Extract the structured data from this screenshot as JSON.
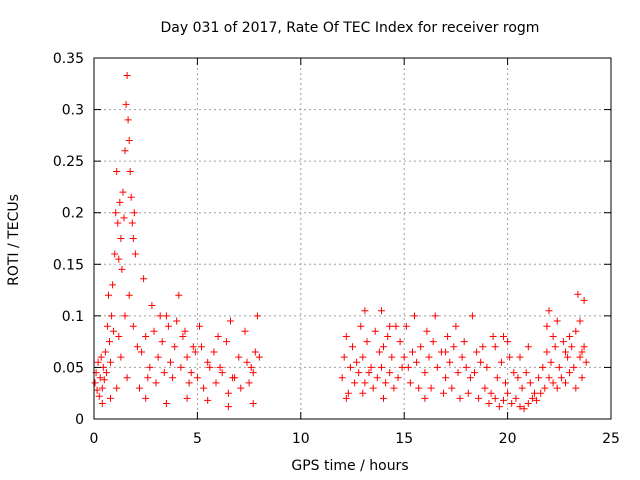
{
  "chart_data": {
    "type": "scatter",
    "title": "Day 031 of 2017, Rate Of TEC Index for receiver rogm",
    "xlabel": "GPS time / hours",
    "ylabel": "ROTI / TECUs",
    "xlim": [
      0,
      25
    ],
    "ylim": [
      0,
      0.35
    ],
    "x_ticks": [
      0,
      5,
      10,
      15,
      20,
      25
    ],
    "x_tick_labels": [
      "0",
      "5",
      "10",
      "15",
      "20",
      "25"
    ],
    "y_ticks": [
      0,
      0.05,
      0.1,
      0.15,
      0.2,
      0.25,
      0.3,
      0.35
    ],
    "y_tick_labels": [
      "0",
      "0.05",
      "0.1",
      "0.15",
      "0.2",
      "0.25",
      "0.3",
      "0.35"
    ],
    "grid": true,
    "marker": "+",
    "colors": {
      "series": "#ff0000",
      "grid": "#a0a0a0",
      "axis": "#000000"
    },
    "series": [
      {
        "name": "ROTI",
        "points": [
          [
            0.05,
            0.035
          ],
          [
            0.1,
            0.045
          ],
          [
            0.15,
            0.028
          ],
          [
            0.2,
            0.055
          ],
          [
            0.25,
            0.022
          ],
          [
            0.3,
            0.04
          ],
          [
            0.35,
            0.06
          ],
          [
            0.4,
            0.03
          ],
          [
            0.45,
            0.05
          ],
          [
            0.5,
            0.038
          ],
          [
            0.55,
            0.065
          ],
          [
            0.6,
            0.045
          ],
          [
            0.65,
            0.09
          ],
          [
            0.7,
            0.12
          ],
          [
            0.75,
            0.075
          ],
          [
            0.8,
            0.055
          ],
          [
            0.85,
            0.1
          ],
          [
            0.9,
            0.13
          ],
          [
            0.95,
            0.085
          ],
          [
            1.0,
            0.16
          ],
          [
            1.05,
            0.2
          ],
          [
            1.1,
            0.24
          ],
          [
            1.15,
            0.19
          ],
          [
            1.2,
            0.155
          ],
          [
            1.25,
            0.21
          ],
          [
            1.3,
            0.175
          ],
          [
            1.35,
            0.145
          ],
          [
            1.4,
            0.22
          ],
          [
            1.45,
            0.195
          ],
          [
            1.5,
            0.26
          ],
          [
            1.55,
            0.305
          ],
          [
            1.6,
            0.333
          ],
          [
            1.65,
            0.29
          ],
          [
            1.7,
            0.27
          ],
          [
            1.75,
            0.24
          ],
          [
            1.8,
            0.215
          ],
          [
            1.85,
            0.19
          ],
          [
            1.9,
            0.175
          ],
          [
            1.95,
            0.2
          ],
          [
            2.0,
            0.16
          ],
          [
            1.2,
            0.08
          ],
          [
            1.3,
            0.06
          ],
          [
            1.5,
            0.1
          ],
          [
            1.7,
            0.12
          ],
          [
            1.9,
            0.09
          ],
          [
            2.1,
            0.07
          ],
          [
            2.3,
            0.065
          ],
          [
            2.5,
            0.08
          ],
          [
            2.7,
            0.05
          ],
          [
            2.9,
            0.085
          ],
          [
            3.1,
            0.06
          ],
          [
            3.3,
            0.075
          ],
          [
            3.5,
            0.1
          ],
          [
            3.7,
            0.055
          ],
          [
            3.9,
            0.07
          ],
          [
            4.1,
            0.12
          ],
          [
            4.3,
            0.08
          ],
          [
            4.5,
            0.06
          ],
          [
            4.7,
            0.045
          ],
          [
            4.9,
            0.065
          ],
          [
            2.2,
            0.03
          ],
          [
            2.6,
            0.04
          ],
          [
            3.0,
            0.035
          ],
          [
            3.4,
            0.045
          ],
          [
            3.8,
            0.04
          ],
          [
            4.2,
            0.05
          ],
          [
            4.6,
            0.035
          ],
          [
            5.0,
            0.04
          ],
          [
            5.3,
            0.03
          ],
          [
            5.6,
            0.05
          ],
          [
            5.9,
            0.035
          ],
          [
            6.2,
            0.045
          ],
          [
            6.5,
            0.025
          ],
          [
            6.8,
            0.04
          ],
          [
            7.1,
            0.03
          ],
          [
            7.4,
            0.055
          ],
          [
            7.7,
            0.045
          ],
          [
            8.0,
            0.06
          ],
          [
            7.9,
            0.1
          ],
          [
            7.5,
            0.035
          ],
          [
            5.2,
            0.07
          ],
          [
            5.5,
            0.055
          ],
          [
            5.8,
            0.065
          ],
          [
            6.1,
            0.05
          ],
          [
            6.4,
            0.075
          ],
          [
            6.7,
            0.04
          ],
          [
            7.0,
            0.06
          ],
          [
            7.3,
            0.085
          ],
          [
            7.6,
            0.05
          ],
          [
            7.8,
            0.065
          ],
          [
            2.4,
            0.136
          ],
          [
            2.8,
            0.11
          ],
          [
            3.2,
            0.1
          ],
          [
            3.6,
            0.09
          ],
          [
            4.0,
            0.095
          ],
          [
            4.4,
            0.085
          ],
          [
            4.8,
            0.07
          ],
          [
            5.1,
            0.09
          ],
          [
            6.0,
            0.08
          ],
          [
            6.6,
            0.095
          ],
          [
            0.4,
            0.015
          ],
          [
            0.8,
            0.02
          ],
          [
            1.1,
            0.03
          ],
          [
            1.6,
            0.04
          ],
          [
            2.5,
            0.02
          ],
          [
            3.5,
            0.015
          ],
          [
            4.5,
            0.02
          ],
          [
            5.5,
            0.018
          ],
          [
            6.5,
            0.012
          ],
          [
            7.7,
            0.015
          ],
          [
            12.0,
            0.04
          ],
          [
            12.1,
            0.06
          ],
          [
            12.2,
            0.08
          ],
          [
            12.3,
            0.025
          ],
          [
            12.4,
            0.05
          ],
          [
            12.5,
            0.07
          ],
          [
            12.6,
            0.035
          ],
          [
            12.7,
            0.055
          ],
          [
            12.8,
            0.045
          ],
          [
            12.9,
            0.09
          ],
          [
            13.0,
            0.06
          ],
          [
            13.2,
            0.075
          ],
          [
            13.4,
            0.05
          ],
          [
            13.6,
            0.085
          ],
          [
            13.8,
            0.065
          ],
          [
            14.0,
            0.07
          ],
          [
            14.2,
            0.08
          ],
          [
            14.4,
            0.06
          ],
          [
            14.6,
            0.09
          ],
          [
            14.8,
            0.075
          ],
          [
            13.1,
            0.035
          ],
          [
            13.3,
            0.045
          ],
          [
            13.5,
            0.03
          ],
          [
            13.7,
            0.04
          ],
          [
            13.9,
            0.05
          ],
          [
            14.1,
            0.035
          ],
          [
            14.3,
            0.045
          ],
          [
            14.5,
            0.03
          ],
          [
            14.7,
            0.04
          ],
          [
            14.9,
            0.05
          ],
          [
            13.1,
            0.105
          ],
          [
            13.9,
            0.105
          ],
          [
            14.3,
            0.09
          ],
          [
            15.0,
            0.06
          ],
          [
            15.2,
            0.05
          ],
          [
            15.4,
            0.065
          ],
          [
            15.6,
            0.055
          ],
          [
            15.8,
            0.07
          ],
          [
            16.0,
            0.045
          ],
          [
            16.2,
            0.06
          ],
          [
            16.4,
            0.075
          ],
          [
            16.6,
            0.05
          ],
          [
            16.8,
            0.065
          ],
          [
            17.0,
            0.04
          ],
          [
            17.2,
            0.055
          ],
          [
            17.4,
            0.07
          ],
          [
            17.6,
            0.045
          ],
          [
            17.8,
            0.06
          ],
          [
            18.0,
            0.05
          ],
          [
            18.2,
            0.04
          ],
          [
            15.1,
            0.09
          ],
          [
            15.5,
            0.1
          ],
          [
            16.1,
            0.085
          ],
          [
            16.5,
            0.1
          ],
          [
            17.1,
            0.08
          ],
          [
            17.5,
            0.09
          ],
          [
            17.9,
            0.075
          ],
          [
            18.3,
            0.1
          ],
          [
            18.5,
            0.065
          ],
          [
            18.7,
            0.055
          ],
          [
            15.3,
            0.035
          ],
          [
            15.7,
            0.03
          ],
          [
            16.3,
            0.03
          ],
          [
            16.9,
            0.025
          ],
          [
            17.3,
            0.03
          ],
          [
            17.7,
            0.02
          ],
          [
            18.1,
            0.025
          ],
          [
            18.6,
            0.02
          ],
          [
            18.9,
            0.03
          ],
          [
            19.2,
            0.025
          ],
          [
            18.4,
            0.045
          ],
          [
            18.8,
            0.07
          ],
          [
            19.0,
            0.05
          ],
          [
            19.3,
            0.08
          ],
          [
            19.5,
            0.04
          ],
          [
            19.7,
            0.055
          ],
          [
            19.9,
            0.035
          ],
          [
            20.1,
            0.06
          ],
          [
            20.3,
            0.045
          ],
          [
            20.5,
            0.04
          ],
          [
            19.1,
            0.015
          ],
          [
            19.4,
            0.02
          ],
          [
            19.6,
            0.012
          ],
          [
            19.8,
            0.018
          ],
          [
            20.0,
            0.025
          ],
          [
            20.2,
            0.015
          ],
          [
            20.4,
            0.02
          ],
          [
            20.6,
            0.012
          ],
          [
            20.8,
            0.01
          ],
          [
            21.0,
            0.015
          ],
          [
            20.7,
            0.03
          ],
          [
            20.9,
            0.045
          ],
          [
            21.1,
            0.035
          ],
          [
            21.3,
            0.025
          ],
          [
            21.5,
            0.04
          ],
          [
            21.7,
            0.05
          ],
          [
            21.9,
            0.065
          ],
          [
            22.1,
            0.055
          ],
          [
            22.3,
            0.07
          ],
          [
            22.5,
            0.05
          ],
          [
            21.2,
            0.02
          ],
          [
            21.4,
            0.018
          ],
          [
            21.6,
            0.025
          ],
          [
            21.8,
            0.03
          ],
          [
            22.0,
            0.04
          ],
          [
            22.2,
            0.035
          ],
          [
            22.4,
            0.03
          ],
          [
            22.6,
            0.04
          ],
          [
            22.8,
            0.035
          ],
          [
            23.0,
            0.045
          ],
          [
            21.9,
            0.09
          ],
          [
            22.0,
            0.105
          ],
          [
            22.2,
            0.08
          ],
          [
            22.4,
            0.095
          ],
          [
            22.7,
            0.075
          ],
          [
            22.9,
            0.06
          ],
          [
            23.1,
            0.07
          ],
          [
            23.3,
            0.085
          ],
          [
            23.4,
            0.121
          ],
          [
            23.5,
            0.095
          ],
          [
            23.2,
            0.05
          ],
          [
            23.6,
            0.065
          ],
          [
            23.7,
            0.115
          ],
          [
            23.8,
            0.055
          ],
          [
            23.6,
            0.04
          ],
          [
            23.3,
            0.03
          ],
          [
            23.7,
            0.07
          ],
          [
            23.5,
            0.06
          ],
          [
            23.0,
            0.08
          ],
          [
            22.8,
            0.065
          ],
          [
            19.8,
            0.08
          ],
          [
            20.0,
            0.075
          ],
          [
            20.6,
            0.06
          ],
          [
            21.0,
            0.07
          ],
          [
            19.4,
            0.07
          ],
          [
            17.0,
            0.065
          ],
          [
            16.0,
            0.02
          ],
          [
            14.0,
            0.02
          ],
          [
            12.2,
            0.02
          ],
          [
            13.0,
            0.025
          ]
        ]
      }
    ]
  }
}
